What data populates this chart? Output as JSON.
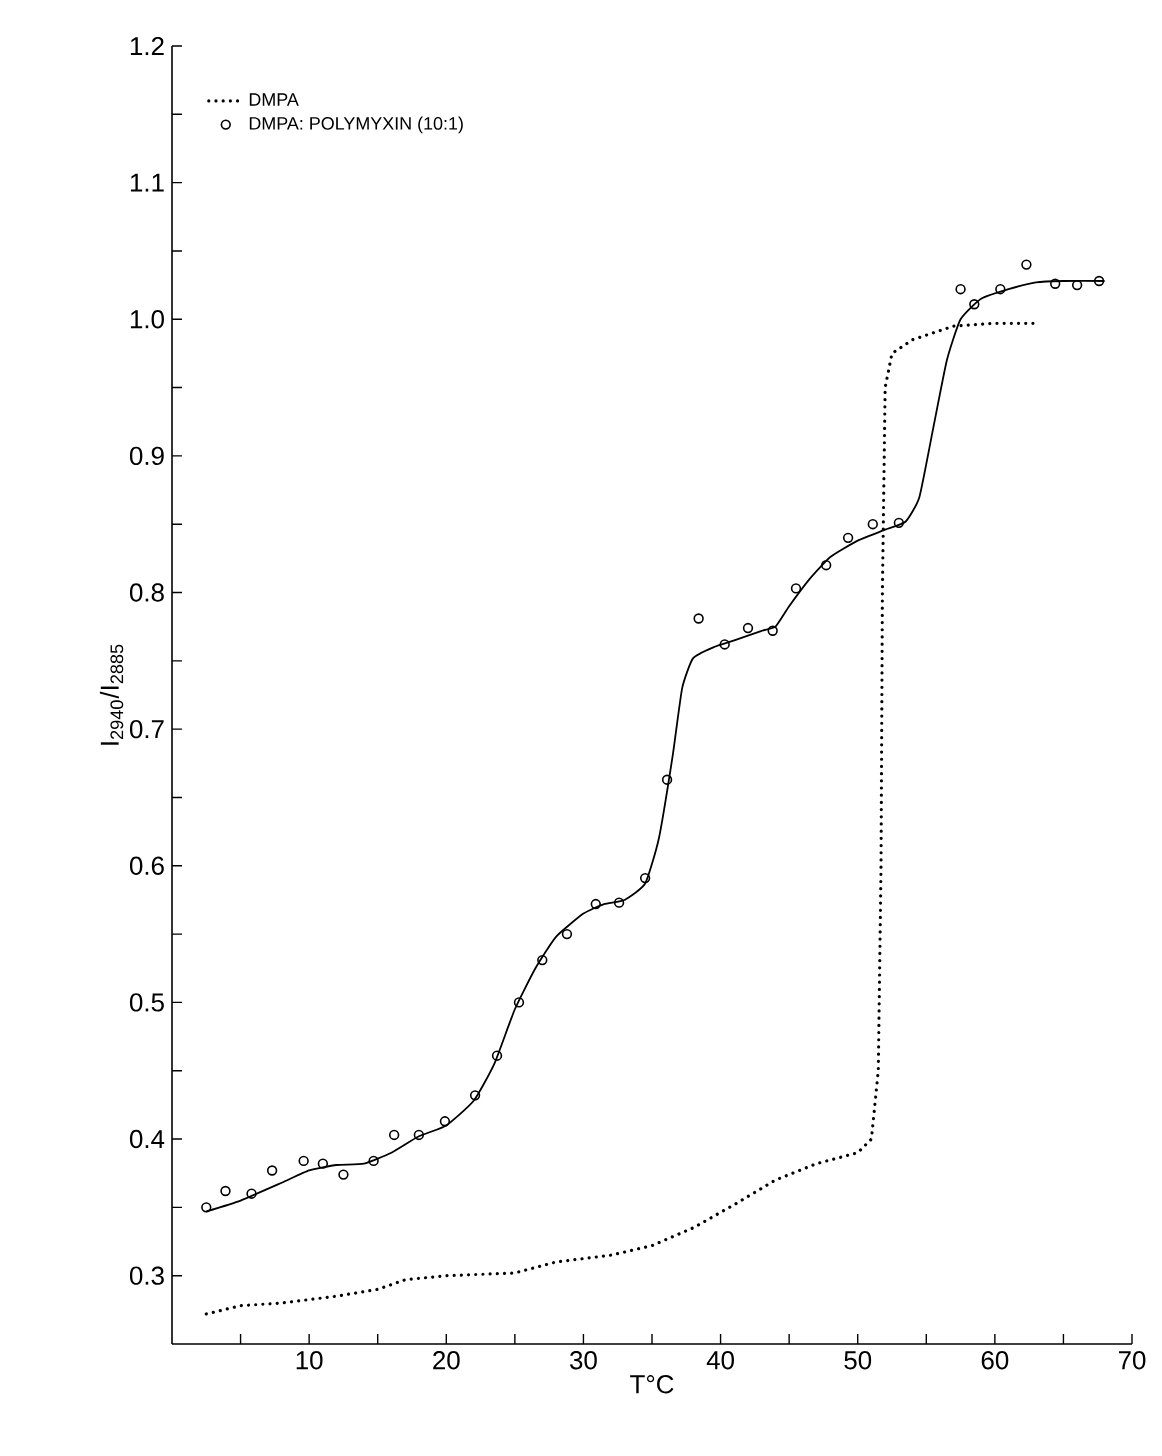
{
  "chart_data": {
    "type": "line",
    "xlabel": "T°C",
    "ylabel": "I$_{2940}$/I$_{2885}$",
    "xlim": [
      0,
      70
    ],
    "ylim": [
      0.25,
      1.2
    ],
    "xticks": [
      {
        "value": 5,
        "label": null
      },
      10,
      {
        "value": 15,
        "label": null
      },
      20,
      {
        "value": 25,
        "label": null
      },
      30,
      {
        "value": 35,
        "label": null
      },
      40,
      {
        "value": 45,
        "label": null
      },
      50,
      {
        "value": 55,
        "label": null
      },
      60,
      {
        "value": 65,
        "label": null
      },
      70
    ],
    "yticks": [
      0.3,
      {
        "value": 0.35,
        "label": null
      },
      0.4,
      {
        "value": 0.45,
        "label": null
      },
      0.5,
      {
        "value": 0.55,
        "label": null
      },
      0.6,
      {
        "value": 0.65,
        "label": null
      },
      0.7,
      {
        "value": 0.75,
        "label": null
      },
      0.8,
      {
        "value": 0.85,
        "label": null
      },
      0.9,
      {
        "value": 0.95,
        "label": null
      },
      {
        "value": 1.0,
        "label": "1.0"
      },
      {
        "value": 1.05,
        "label": null
      },
      1.1,
      {
        "value": 1.15,
        "label": null
      },
      1.2
    ],
    "legend": "top left",
    "grid": false,
    "series": [
      {
        "name": "DMPA",
        "line_style": "dotted",
        "marker": "none",
        "color": "#000000",
        "x": [
          2.5,
          5,
          8,
          12,
          15,
          17,
          20,
          25,
          28,
          32,
          35,
          38,
          41,
          44,
          47,
          50,
          51,
          51.5,
          51.7,
          51.8,
          52,
          52.5,
          54,
          57,
          60,
          63.2
        ],
        "values": [
          0.272,
          0.278,
          0.28,
          0.285,
          0.29,
          0.297,
          0.3,
          0.302,
          0.31,
          0.315,
          0.322,
          0.335,
          0.352,
          0.37,
          0.382,
          0.39,
          0.4,
          0.45,
          0.6,
          0.8,
          0.95,
          0.975,
          0.985,
          0.995,
          0.997,
          0.997
        ]
      },
      {
        "name": "DMPA: POLYMYXIN (10:1)",
        "type": "scatter",
        "marker": "circle",
        "color": "#000000",
        "x": [
          2.5,
          3.9,
          5.8,
          7.3,
          9.6,
          11,
          12.5,
          14.7,
          16.2,
          18,
          19.9,
          22.1,
          23.7,
          25.3,
          27,
          28.8,
          30.9,
          32.6,
          34.5,
          36.1,
          38.4,
          40.3,
          42,
          43.8,
          45.5,
          47.7,
          49.3,
          51.1,
          53,
          57.5,
          58.5,
          60.4,
          62.3,
          64.4,
          66,
          67.6
        ],
        "values": [
          0.35,
          0.362,
          0.36,
          0.377,
          0.384,
          0.382,
          0.374,
          0.384,
          0.403,
          0.403,
          0.413,
          0.432,
          0.461,
          0.5,
          0.531,
          0.55,
          0.572,
          0.573,
          0.591,
          0.663,
          0.781,
          0.762,
          0.774,
          0.772,
          0.803,
          0.82,
          0.84,
          0.85,
          0.851,
          1.022,
          1.011,
          1.022,
          1.04,
          1.026,
          1.025,
          1.028
        ]
      },
      {
        "line_style": "solid",
        "marker": "none",
        "color": "#000000",
        "x": [
          2.5,
          5,
          8,
          10,
          12,
          14,
          16,
          18,
          20,
          22,
          23.5,
          25,
          26.5,
          28,
          30,
          31.5,
          33,
          34.5,
          35.5,
          36.5,
          37.2,
          38,
          39.5,
          41,
          43,
          44,
          45,
          46.5,
          48,
          50,
          52,
          53.5,
          54.5,
          55.5,
          56.5,
          57.5,
          59,
          61,
          63,
          65,
          68
        ],
        "values": [
          0.347,
          0.355,
          0.368,
          0.377,
          0.381,
          0.382,
          0.39,
          0.402,
          0.41,
          0.428,
          0.455,
          0.495,
          0.525,
          0.548,
          0.565,
          0.572,
          0.575,
          0.587,
          0.62,
          0.68,
          0.73,
          0.752,
          0.76,
          0.765,
          0.772,
          0.775,
          0.79,
          0.81,
          0.826,
          0.838,
          0.846,
          0.852,
          0.87,
          0.92,
          0.97,
          1.0,
          1.015,
          1.022,
          1.027,
          1.028,
          1.028
        ]
      }
    ]
  }
}
